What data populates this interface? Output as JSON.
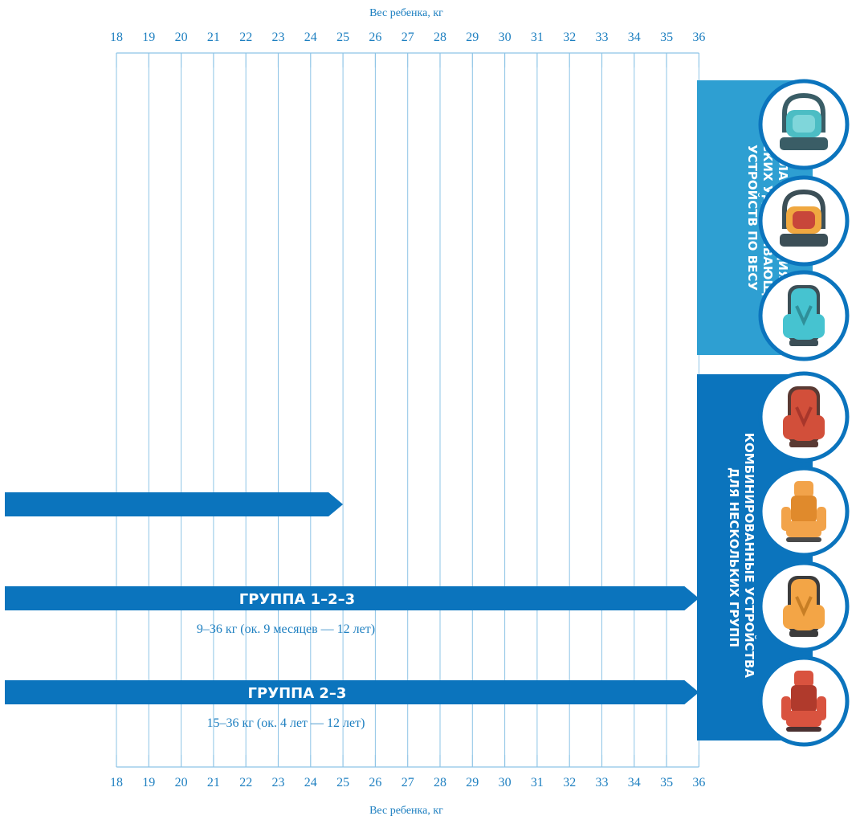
{
  "axis": {
    "title_top": "Вес ребенка, кг",
    "title_bottom": "Вес ребенка, кг",
    "ticks": [
      18,
      19,
      20,
      21,
      22,
      23,
      24,
      25,
      26,
      27,
      28,
      29,
      30,
      31,
      32,
      33,
      34,
      35,
      36
    ]
  },
  "bars": [
    {
      "id": "bar-partial",
      "start": null,
      "end": 25,
      "title": "",
      "subtitle": ""
    },
    {
      "id": "group-1-2-3",
      "start": null,
      "end": 36,
      "title": "ГРУППА 1–2–3",
      "subtitle": "9–36 кг (ок. 9 месяцев — 12 лет)"
    },
    {
      "id": "group-2-3",
      "start": null,
      "end": 36,
      "title": "ГРУППА 2–3",
      "subtitle": "15–36 кг (ок. 4 лет — 12 лет)"
    }
  ],
  "panels": {
    "classification": {
      "lines": [
        "КЛАССИФИКАЦИЯ",
        "ДЕТСКИХ УДЕРЖИВАЮЩИХ",
        "УСТРОЙСТВ ПО ВЕСУ"
      ]
    },
    "combined": {
      "lines": [
        "КОМБИНИРОВАННЫЕ УСТРОЙСТВА",
        "ДЛЯ НЕСКОЛЬКИХ ГРУПП"
      ]
    }
  },
  "seats": [
    {
      "icon": "infant-carrier-teal-icon",
      "shell": "#3a5d66",
      "body": "#4cbdc4",
      "accent": "#7fd6da"
    },
    {
      "icon": "infant-carrier-orange-icon",
      "shell": "#3c4f57",
      "body": "#f0a840",
      "accent": "#c8463a"
    },
    {
      "icon": "car-seat-teal-icon",
      "shell": "#3c4f57",
      "body": "#46c3d0",
      "accent": "#2f8f99"
    },
    {
      "icon": "car-seat-red-icon",
      "shell": "#5a3a33",
      "body": "#d24f3a",
      "accent": "#a8362b"
    },
    {
      "icon": "booster-seat-orange-icon",
      "shell": "#4a4a4a",
      "body": "#f2a34a",
      "accent": "#e08a2c"
    },
    {
      "icon": "car-seat-orange-icon",
      "shell": "#3c3c3c",
      "body": "#f3a546",
      "accent": "#c77e25"
    },
    {
      "icon": "booster-seat-red-icon",
      "shell": "#4a3030",
      "body": "#d9533f",
      "accent": "#b03a2c"
    }
  ],
  "colors": {
    "axis_text": "#1d7fc0",
    "grid": "#8ec4e6",
    "bar": "#0b74bd",
    "panel_top": "#2e9fd2",
    "panel_bottom": "#0b74bd",
    "circle_border": "#0b74bd"
  }
}
